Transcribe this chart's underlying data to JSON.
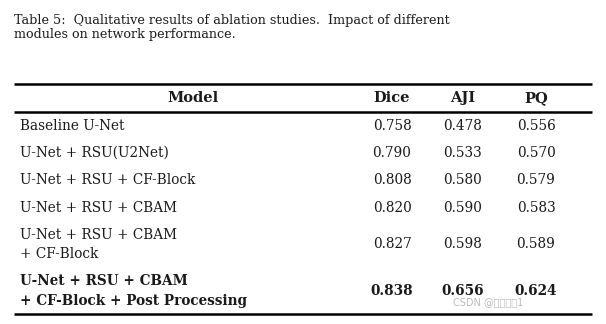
{
  "caption_line1": "Table 5:  Qualitative results of ablation studies.  Impact of different",
  "caption_line2": "modules on network performance.",
  "headers": [
    "Model",
    "Dice",
    "AJI",
    "PQ"
  ],
  "rows": [
    [
      "Baseline U-Net",
      "0.758",
      "0.478",
      "0.556",
      false
    ],
    [
      "U-Net + RSU(U2Net)",
      "0.790",
      "0.533",
      "0.570",
      false
    ],
    [
      "U-Net + RSU + CF-Block",
      "0.808",
      "0.580",
      "0.579",
      false
    ],
    [
      "U-Net + RSU + CBAM",
      "0.820",
      "0.590",
      "0.583",
      false
    ],
    [
      "U-Net + RSU + CBAM\n+ CF-Block",
      "0.827",
      "0.598",
      "0.589",
      false
    ],
    [
      "U-Net + RSU + CBAM\n+ CF-Block + Post Processing",
      "0.838",
      "0.656",
      "0.624",
      true
    ]
  ],
  "bg_color": "#ffffff",
  "text_color": "#1a1a1a",
  "watermark": "CSDN @小杨小杲1",
  "caption_fontsize": 9.2,
  "header_fontsize": 10.5,
  "data_fontsize": 9.8
}
